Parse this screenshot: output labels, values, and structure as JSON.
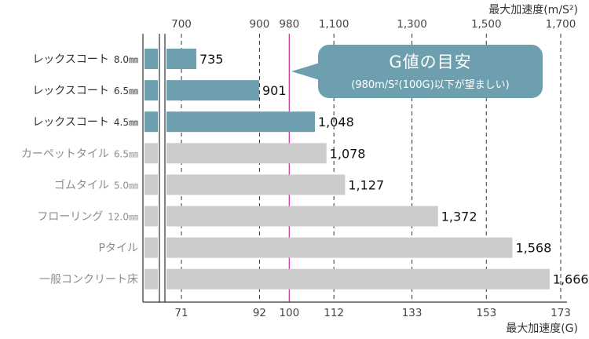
{
  "chart_data": {
    "type": "bar",
    "orientation": "horizontal",
    "title": "",
    "top_axis_label": "最大加速度(m/S²)",
    "xlabel": "最大加速度(G)",
    "ylabel": "",
    "xlim": [
      64,
      176
    ],
    "top_ticks": [
      {
        "value": 71,
        "label": "700"
      },
      {
        "value": 92,
        "label": "900"
      },
      {
        "value": 100,
        "label": "980"
      },
      {
        "value": 112,
        "label": "1,100"
      },
      {
        "value": 133,
        "label": "1,300"
      },
      {
        "value": 153,
        "label": "1,500"
      },
      {
        "value": 173,
        "label": "1,700"
      }
    ],
    "bottom_ticks": [
      {
        "value": 71,
        "label": "71"
      },
      {
        "value": 92,
        "label": "92"
      },
      {
        "value": 100,
        "label": "100"
      },
      {
        "value": 112,
        "label": "112"
      },
      {
        "value": 133,
        "label": "133"
      },
      {
        "value": 153,
        "label": "153"
      },
      {
        "value": 173,
        "label": "173"
      }
    ],
    "reference_line": 100,
    "grid": true,
    "categories": [
      {
        "name": "レックスコート",
        "size": "8.0㎜",
        "value_g": 75,
        "label": "735",
        "group": "highlight"
      },
      {
        "name": "レックスコート",
        "size": "6.5㎜",
        "value_g": 91.9,
        "label": "901",
        "group": "highlight"
      },
      {
        "name": "レックスコート",
        "size": "4.5㎜",
        "value_g": 106.9,
        "label": "1,048",
        "group": "highlight"
      },
      {
        "name": "カーペットタイル",
        "size": "6.5㎜",
        "value_g": 110,
        "label": "1,078",
        "group": "other"
      },
      {
        "name": "ゴムタイル",
        "size": "5.0㎜",
        "value_g": 115,
        "label": "1,127",
        "group": "other"
      },
      {
        "name": "フローリング",
        "size": "12.0㎜",
        "value_g": 140,
        "label": "1,372",
        "group": "other"
      },
      {
        "name": "Pタイル",
        "size": "",
        "value_g": 160,
        "label": "1,568",
        "group": "other"
      },
      {
        "name": "一般コンクリート床",
        "size": "",
        "value_g": 170,
        "label": "1,666",
        "group": "other"
      }
    ]
  },
  "callout": {
    "title": "G値の目安",
    "note": "(980m/S²(100G)以下が望ましい)"
  },
  "colors": {
    "highlight_bar": "#6e9fae",
    "other_bar": "#cccccc",
    "highlight_text": "#333333",
    "other_text": "#8c8c8c",
    "reference_line": "#d03c9b",
    "grid": "#333333",
    "axis": "#333333"
  }
}
